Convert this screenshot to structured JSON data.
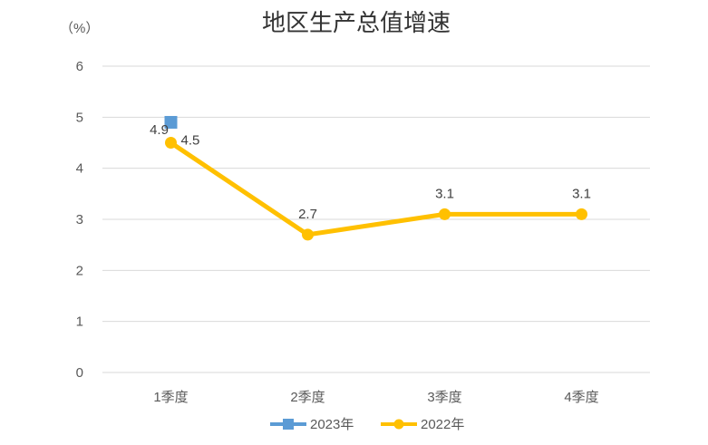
{
  "chart_data": {
    "type": "line",
    "title": "地区生产总值增速",
    "unit_label": "（%）",
    "categories": [
      "1季度",
      "2季度",
      "3季度",
      "4季度"
    ],
    "ylim": [
      0,
      6
    ],
    "yticks": [
      0,
      1,
      2,
      3,
      4,
      5,
      6
    ],
    "grid": true,
    "legend_position": "bottom",
    "series": [
      {
        "name": "2023年",
        "values": [
          4.9,
          null,
          null,
          null
        ],
        "labels": [
          "4.9",
          "",
          "",
          ""
        ],
        "color": "#5b9bd5",
        "marker": "square"
      },
      {
        "name": "2022年",
        "values": [
          4.5,
          2.7,
          3.1,
          3.1
        ],
        "labels": [
          "4.5",
          "2.7",
          "3.1",
          "3.1"
        ],
        "color": "#ffc000",
        "marker": "circle"
      }
    ]
  }
}
